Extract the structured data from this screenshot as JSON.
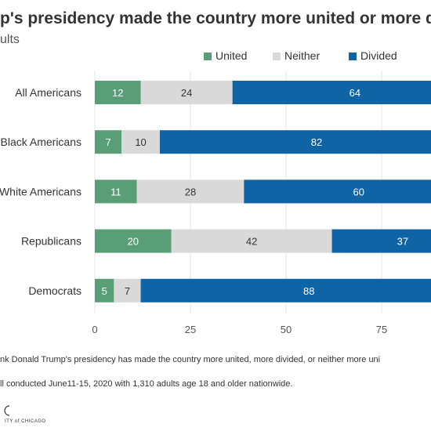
{
  "title": "p's presidency made the country more united or more d",
  "subtitle": "ults",
  "colors": {
    "United": "#5a9e78",
    "Neither": "#d9d9d9",
    "Divided": "#0f64a5"
  },
  "footnotes": [
    "nk Donald Trump's presidency has made the country more united, more divided, or neither more uni",
    "ll conducted June11-15, 2020 with 1,310 adults age 18 and older nationwide."
  ],
  "logo_text": "ITY of CHICAGO",
  "chart_data": {
    "type": "bar",
    "orientation": "horizontal",
    "stacked": true,
    "categories": [
      "All Americans",
      "Black Americans",
      "White Americans",
      "Republicans",
      "Democrats"
    ],
    "series": [
      {
        "name": "United",
        "values": [
          12,
          7,
          11,
          20,
          5
        ]
      },
      {
        "name": "Neither",
        "values": [
          24,
          10,
          28,
          42,
          7
        ]
      },
      {
        "name": "Divided",
        "values": [
          64,
          82,
          60,
          37,
          88
        ]
      }
    ],
    "xlim": [
      0,
      100
    ],
    "xticks": [
      0,
      25,
      50,
      75
    ],
    "grid": true,
    "legend": "top"
  }
}
